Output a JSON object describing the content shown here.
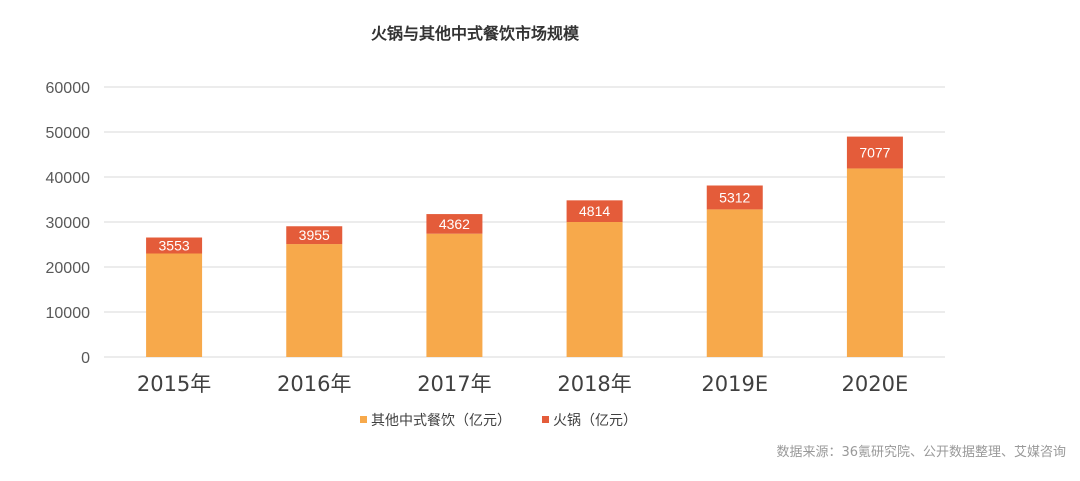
{
  "chart_data": {
    "type": "bar",
    "stacked": true,
    "title": "火锅与其他中式餐饮市场规模",
    "categories": [
      "2015年",
      "2016年",
      "2017年",
      "2018年",
      "2019E",
      "2020E"
    ],
    "series": [
      {
        "name": "其他中式餐饮（亿元）",
        "values": [
          23000,
          25100,
          27400,
          30000,
          32800,
          41900
        ],
        "color": "#F7A94B"
      },
      {
        "name": "火锅（亿元）",
        "values": [
          3553,
          3955,
          4362,
          4814,
          5312,
          7077
        ],
        "color": "#E45C3A"
      }
    ],
    "data_labels": [
      "3553",
      "3955",
      "4362",
      "4814",
      "5312",
      "7077"
    ],
    "yticks": [
      "0",
      "10000",
      "20000",
      "30000",
      "40000",
      "50000",
      "60000"
    ],
    "ylim": [
      0,
      60000
    ],
    "xlabel": "",
    "ylabel": "",
    "grid": true,
    "legend_position": "bottom-center"
  },
  "source_text": "数据来源：36氪研究院、公开数据整理、艾媒咨询"
}
